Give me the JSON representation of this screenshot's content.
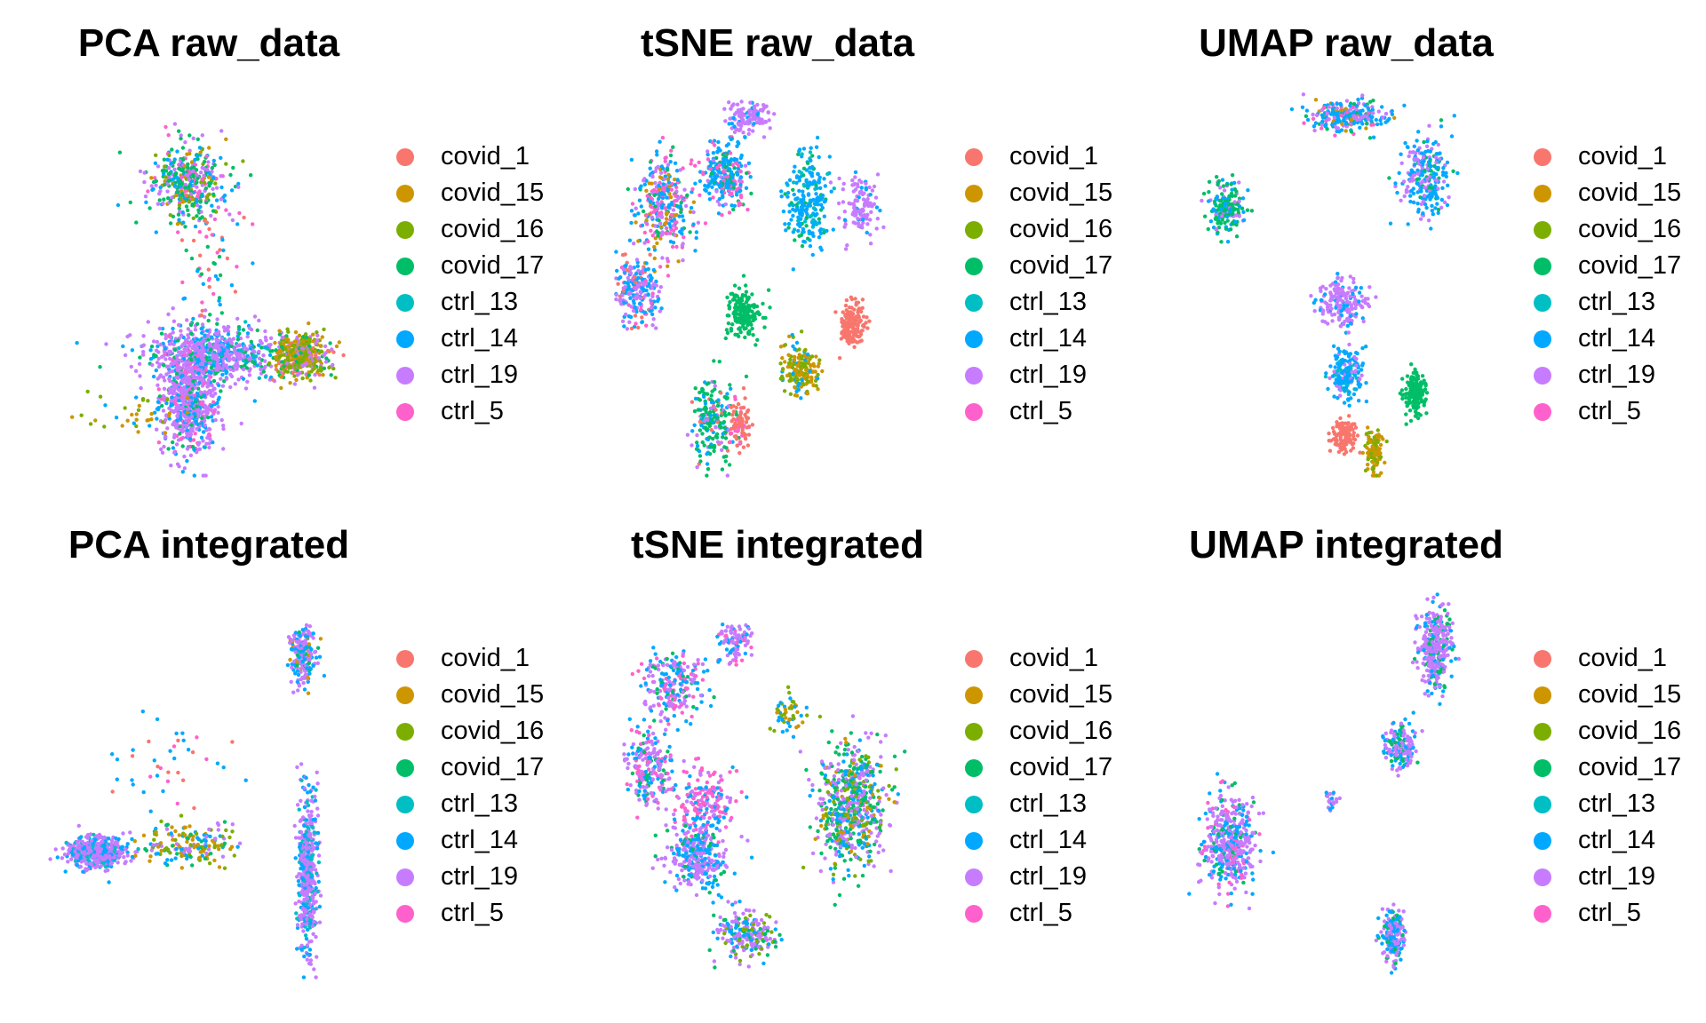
{
  "legend": {
    "groups": [
      {
        "label": "covid_1",
        "color": "#F8766D"
      },
      {
        "label": "covid_15",
        "color": "#CD9600"
      },
      {
        "label": "covid_16",
        "color": "#7CAE00"
      },
      {
        "label": "covid_17",
        "color": "#00BE67"
      },
      {
        "label": "ctrl_13",
        "color": "#00BFC4"
      },
      {
        "label": "ctrl_14",
        "color": "#00A9FF"
      },
      {
        "label": "ctrl_19",
        "color": "#C77CFF"
      },
      {
        "label": "ctrl_5",
        "color": "#FF61CC"
      }
    ]
  },
  "chart_data": [
    {
      "type": "scatter",
      "title": "PCA raw_data",
      "grid": false,
      "axes": "none",
      "legend_position": "right",
      "clusters": [
        {
          "center": [
            0.47,
            0.24
          ],
          "spread": [
            0.13,
            0.1
          ],
          "count": 380,
          "mix": {
            "covid_17": 3,
            "ctrl_19": 2,
            "ctrl_14": 2,
            "covid_16": 1,
            "ctrl_5": 1,
            "covid_15": 1
          }
        },
        {
          "center": [
            0.55,
            0.68
          ],
          "spread": [
            0.22,
            0.07
          ],
          "count": 700,
          "mix": {
            "ctrl_19": 6,
            "ctrl_14": 2,
            "ctrl_13": 1,
            "covid_17": 1
          }
        },
        {
          "center": [
            0.85,
            0.68
          ],
          "spread": [
            0.09,
            0.06
          ],
          "count": 400,
          "mix": {
            "covid_15": 3,
            "covid_16": 3,
            "ctrl_19": 2,
            "covid_17": 1,
            "covid_1": 1
          }
        },
        {
          "center": [
            0.48,
            0.8
          ],
          "spread": [
            0.09,
            0.14
          ],
          "count": 650,
          "mix": {
            "ctrl_19": 6,
            "ctrl_14": 2,
            "ctrl_5": 1,
            "covid_17": 1
          }
        },
        {
          "center": [
            0.3,
            0.83
          ],
          "spread": [
            0.18,
            0.06
          ],
          "count": 40,
          "mix": {
            "covid_15": 2,
            "covid_16": 2,
            "ctrl_14": 1
          }
        },
        {
          "center": [
            0.55,
            0.45
          ],
          "spread": [
            0.12,
            0.15
          ],
          "count": 60,
          "mix": {
            "ctrl_5": 1,
            "covid_1": 1,
            "ctrl_14": 1,
            "covid_17": 1
          }
        }
      ]
    },
    {
      "type": "scatter",
      "title": "tSNE raw_data",
      "grid": false,
      "axes": "none",
      "legend_position": "right",
      "clusters": [
        {
          "center": [
            0.45,
            0.07
          ],
          "spread": [
            0.08,
            0.04
          ],
          "count": 120,
          "mix": {
            "ctrl_19": 5,
            "ctrl_14": 1
          }
        },
        {
          "center": [
            0.17,
            0.3
          ],
          "spread": [
            0.09,
            0.12
          ],
          "count": 320,
          "mix": {
            "ctrl_5": 3,
            "ctrl_14": 3,
            "ctrl_19": 2,
            "covid_15": 1,
            "covid_17": 1
          }
        },
        {
          "center": [
            0.37,
            0.22
          ],
          "spread": [
            0.08,
            0.08
          ],
          "count": 260,
          "mix": {
            "ctrl_14": 4,
            "ctrl_5": 2,
            "covid_17": 1,
            "ctrl_19": 1
          }
        },
        {
          "center": [
            0.08,
            0.52
          ],
          "spread": [
            0.07,
            0.1
          ],
          "count": 220,
          "mix": {
            "ctrl_14": 3,
            "ctrl_19": 3,
            "ctrl_5": 1,
            "covid_1": 1
          }
        },
        {
          "center": [
            0.64,
            0.28
          ],
          "spread": [
            0.07,
            0.12
          ],
          "count": 220,
          "mix": {
            "ctrl_14": 5,
            "ctrl_13": 1,
            "covid_17": 1
          }
        },
        {
          "center": [
            0.82,
            0.3
          ],
          "spread": [
            0.06,
            0.08
          ],
          "count": 120,
          "mix": {
            "ctrl_19": 5,
            "ctrl_14": 1
          }
        },
        {
          "center": [
            0.43,
            0.58
          ],
          "spread": [
            0.06,
            0.06
          ],
          "count": 170,
          "mix": {
            "covid_17": 8
          }
        },
        {
          "center": [
            0.79,
            0.6
          ],
          "spread": [
            0.04,
            0.05
          ],
          "count": 150,
          "mix": {
            "covid_1": 8
          }
        },
        {
          "center": [
            0.62,
            0.72
          ],
          "spread": [
            0.06,
            0.07
          ],
          "count": 170,
          "mix": {
            "covid_15": 4,
            "covid_16": 3,
            "ctrl_14": 1
          }
        },
        {
          "center": [
            0.33,
            0.85
          ],
          "spread": [
            0.07,
            0.1
          ],
          "count": 200,
          "mix": {
            "covid_17": 5,
            "ctrl_14": 2,
            "ctrl_19": 1,
            "covid_1": 1
          }
        },
        {
          "center": [
            0.42,
            0.86
          ],
          "spread": [
            0.04,
            0.06
          ],
          "count": 90,
          "mix": {
            "covid_1": 5,
            "ctrl_5": 2
          }
        }
      ]
    },
    {
      "type": "scatter",
      "title": "UMAP raw_data",
      "grid": false,
      "axes": "none",
      "legend_position": "right",
      "clusters": [
        {
          "center": [
            0.55,
            0.07
          ],
          "spread": [
            0.13,
            0.04
          ],
          "count": 260,
          "mix": {
            "ctrl_14": 4,
            "ctrl_19": 2,
            "covid_17": 1,
            "covid_15": 1,
            "ctrl_5": 1
          }
        },
        {
          "center": [
            0.8,
            0.22
          ],
          "spread": [
            0.08,
            0.1
          ],
          "count": 240,
          "mix": {
            "ctrl_14": 4,
            "ctrl_19": 3,
            "covid_17": 1
          }
        },
        {
          "center": [
            0.15,
            0.3
          ],
          "spread": [
            0.06,
            0.07
          ],
          "count": 180,
          "mix": {
            "covid_17": 4,
            "ctrl_19": 2,
            "ctrl_14": 2
          }
        },
        {
          "center": [
            0.53,
            0.55
          ],
          "spread": [
            0.08,
            0.06
          ],
          "count": 180,
          "mix": {
            "ctrl_19": 6,
            "ctrl_14": 2
          }
        },
        {
          "center": [
            0.55,
            0.73
          ],
          "spread": [
            0.05,
            0.07
          ],
          "count": 180,
          "mix": {
            "ctrl_14": 5,
            "ctrl_13": 1,
            "ctrl_19": 1
          }
        },
        {
          "center": [
            0.77,
            0.78
          ],
          "spread": [
            0.04,
            0.05
          ],
          "count": 150,
          "mix": {
            "covid_17": 8
          }
        },
        {
          "center": [
            0.54,
            0.89
          ],
          "spread": [
            0.04,
            0.04
          ],
          "count": 130,
          "mix": {
            "covid_1": 8
          }
        },
        {
          "center": [
            0.64,
            0.93
          ],
          "spread": [
            0.03,
            0.06
          ],
          "count": 110,
          "mix": {
            "covid_15": 4,
            "covid_16": 3
          }
        }
      ]
    },
    {
      "type": "scatter",
      "title": "PCA integrated",
      "grid": false,
      "axes": "none",
      "legend_position": "right",
      "clusters": [
        {
          "center": [
            0.17,
            0.67
          ],
          "spread": [
            0.1,
            0.04
          ],
          "count": 500,
          "mix": {
            "ctrl_19": 6,
            "ctrl_14": 2,
            "ctrl_13": 1
          }
        },
        {
          "center": [
            0.48,
            0.65
          ],
          "spread": [
            0.16,
            0.05
          ],
          "count": 180,
          "mix": {
            "covid_15": 3,
            "covid_16": 2,
            "ctrl_14": 2,
            "ctrl_19": 2,
            "covid_17": 1
          }
        },
        {
          "center": [
            0.86,
            0.17
          ],
          "spread": [
            0.04,
            0.08
          ],
          "count": 220,
          "mix": {
            "ctrl_19": 4,
            "ctrl_14": 2,
            "covid_17": 1,
            "covid_15": 1
          }
        },
        {
          "center": [
            0.87,
            0.72
          ],
          "spread": [
            0.03,
            0.2
          ],
          "count": 500,
          "mix": {
            "ctrl_19": 5,
            "ctrl_14": 2,
            "ctrl_13": 1
          }
        },
        {
          "center": [
            0.4,
            0.45
          ],
          "spread": [
            0.2,
            0.12
          ],
          "count": 40,
          "mix": {
            "ctrl_14": 2,
            "covid_1": 1,
            "ctrl_5": 1
          }
        }
      ]
    },
    {
      "type": "scatter",
      "title": "tSNE integrated",
      "grid": false,
      "axes": "none",
      "legend_position": "right",
      "clusters": [
        {
          "center": [
            0.2,
            0.24
          ],
          "spread": [
            0.1,
            0.08
          ],
          "count": 220,
          "mix": {
            "ctrl_19": 4,
            "ctrl_14": 3,
            "ctrl_5": 2,
            "covid_17": 1
          }
        },
        {
          "center": [
            0.12,
            0.45
          ],
          "spread": [
            0.08,
            0.1
          ],
          "count": 230,
          "mix": {
            "ctrl_19": 3,
            "ctrl_14": 3,
            "ctrl_5": 2,
            "covid_17": 1
          }
        },
        {
          "center": [
            0.3,
            0.55
          ],
          "spread": [
            0.1,
            0.1
          ],
          "count": 200,
          "mix": {
            "ctrl_5": 4,
            "ctrl_19": 2,
            "ctrl_14": 2
          }
        },
        {
          "center": [
            0.28,
            0.68
          ],
          "spread": [
            0.1,
            0.08
          ],
          "count": 320,
          "mix": {
            "ctrl_19": 5,
            "ctrl_14": 3,
            "covid_17": 1
          }
        },
        {
          "center": [
            0.4,
            0.13
          ],
          "spread": [
            0.05,
            0.05
          ],
          "count": 100,
          "mix": {
            "ctrl_19": 4,
            "ctrl_14": 2,
            "ctrl_5": 1
          }
        },
        {
          "center": [
            0.79,
            0.55
          ],
          "spread": [
            0.11,
            0.16
          ],
          "count": 650,
          "mix": {
            "covid_17": 3,
            "ctrl_19": 3,
            "ctrl_14": 2,
            "covid_16": 1,
            "covid_15": 1
          }
        },
        {
          "center": [
            0.44,
            0.88
          ],
          "spread": [
            0.1,
            0.06
          ],
          "count": 220,
          "mix": {
            "ctrl_19": 4,
            "ctrl_14": 2,
            "covid_17": 1,
            "covid_16": 1
          }
        },
        {
          "center": [
            0.58,
            0.32
          ],
          "spread": [
            0.05,
            0.06
          ],
          "count": 50,
          "mix": {
            "covid_16": 2,
            "covid_15": 1,
            "ctrl_14": 2
          }
        }
      ]
    },
    {
      "type": "scatter",
      "title": "UMAP integrated",
      "grid": false,
      "axes": "none",
      "legend_position": "right",
      "clusters": [
        {
          "center": [
            0.84,
            0.15
          ],
          "spread": [
            0.06,
            0.1
          ],
          "count": 330,
          "mix": {
            "ctrl_19": 6,
            "ctrl_14": 2,
            "covid_17": 1
          }
        },
        {
          "center": [
            0.72,
            0.4
          ],
          "spread": [
            0.05,
            0.06
          ],
          "count": 170,
          "mix": {
            "ctrl_19": 4,
            "ctrl_14": 3,
            "covid_17": 1
          }
        },
        {
          "center": [
            0.16,
            0.65
          ],
          "spread": [
            0.08,
            0.12
          ],
          "count": 460,
          "mix": {
            "ctrl_19": 5,
            "ctrl_14": 3,
            "covid_17": 1,
            "ctrl_5": 1
          }
        },
        {
          "center": [
            0.7,
            0.88
          ],
          "spread": [
            0.04,
            0.07
          ],
          "count": 170,
          "mix": {
            "ctrl_19": 4,
            "ctrl_14": 3,
            "covid_17": 1
          }
        },
        {
          "center": [
            0.49,
            0.54
          ],
          "spread": [
            0.02,
            0.03
          ],
          "count": 20,
          "mix": {
            "ctrl_19": 2,
            "ctrl_14": 1
          }
        }
      ]
    }
  ]
}
